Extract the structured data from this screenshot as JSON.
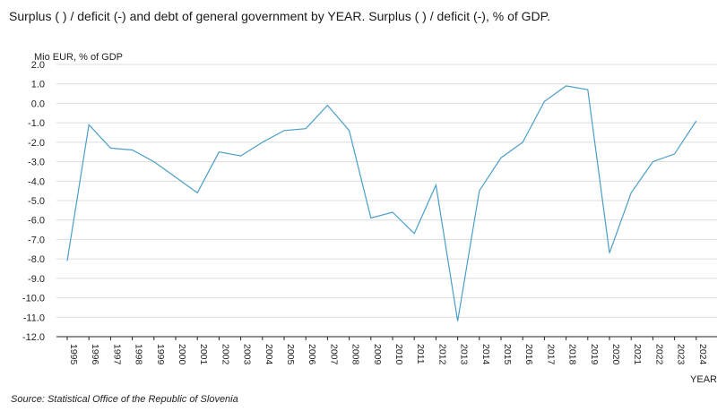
{
  "header": {
    "title": "Surplus ( ) / deficit (-) and debt of general government by YEAR. Surplus ( ) / deficit (-), % of GDP."
  },
  "footer": {
    "source": "Source: Statistical Office of the Republic of Slovenia"
  },
  "chart_data": {
    "type": "line",
    "ylabel": "Mio EUR, % of GDP",
    "xlabel": "YEAR",
    "ylim": [
      -12.0,
      2.0
    ],
    "yticks": [
      "2.0",
      "1.0",
      "0.0",
      "-1.0",
      "-2.0",
      "-3.0",
      "-4.0",
      "-5.0",
      "-6.0",
      "-7.0",
      "-8.0",
      "-9.0",
      "-10.0",
      "-11.0",
      "-12.0"
    ],
    "grid": true,
    "line_color": "#4a9fc8",
    "categories": [
      "1995",
      "1996",
      "1997",
      "1998",
      "1999",
      "2000",
      "2001",
      "2002",
      "2003",
      "2004",
      "2005",
      "2006",
      "2007",
      "2008",
      "2009",
      "2010",
      "2011",
      "2012",
      "2013",
      "2014",
      "2015",
      "2016",
      "2017",
      "2018",
      "2019",
      "2020",
      "2021",
      "2022",
      "2023",
      "2024"
    ],
    "series": [
      {
        "values": [
          -8.1,
          -1.1,
          -2.3,
          -2.4,
          -3.0,
          -3.8,
          -4.6,
          -2.5,
          -2.7,
          -2.0,
          -1.4,
          -1.3,
          -0.1,
          -1.4,
          -5.9,
          -5.6,
          -6.7,
          -4.2,
          -11.2,
          -4.5,
          -2.8,
          -2.0,
          0.1,
          0.9,
          0.7,
          -7.7,
          -4.6,
          -3.0,
          -2.6,
          -0.9
        ]
      }
    ]
  }
}
